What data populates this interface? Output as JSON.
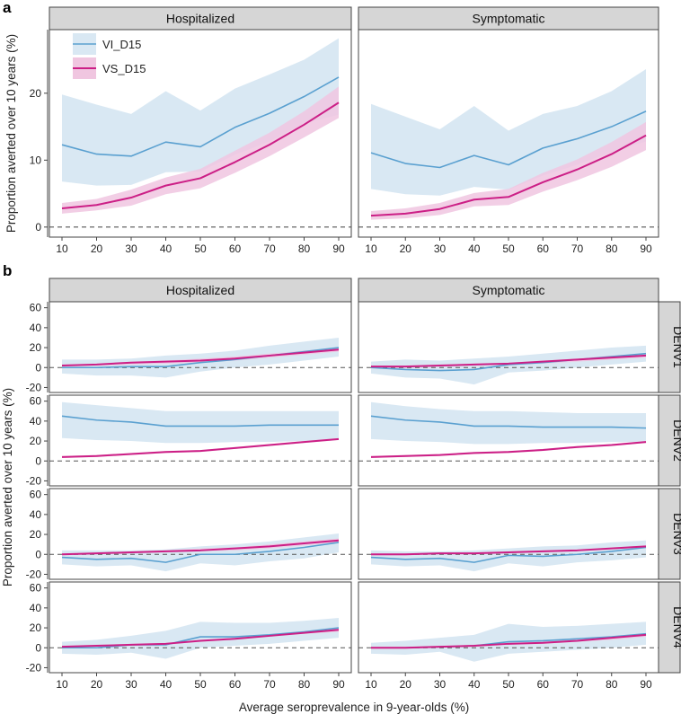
{
  "colors": {
    "vi_line": "#5aa0d0",
    "vi_band": "#d9e8f3",
    "vs_line": "#cc1f86",
    "vs_band": "#f0c6e0",
    "strip_bg": "#d6d6d6",
    "zero_line": "#555555"
  },
  "chart_data": [
    {
      "panel": "a",
      "type": "line",
      "facets": [
        "Hospitalized",
        "Symptomatic"
      ],
      "x": [
        10,
        20,
        30,
        40,
        50,
        60,
        70,
        80,
        90
      ],
      "xlabel": "",
      "ylabel": "Proportion averted over 10 years (%)",
      "ylim": [
        -1.5,
        29.5
      ],
      "yticks": [
        0,
        10,
        20
      ],
      "legend": {
        "placement": "top-left",
        "entries": [
          "VI_D15",
          "VS_D15"
        ]
      },
      "series": {
        "Hospitalized": [
          {
            "name": "VI_D15",
            "values": [
              12.3,
              10.9,
              10.6,
              12.7,
              12.0,
              14.9,
              17.0,
              19.5,
              22.4
            ],
            "lower": [
              6.8,
              6.2,
              6.3,
              8.2,
              8.3,
              10.8,
              12.8,
              15.5,
              16.8
            ],
            "upper": [
              19.8,
              18.3,
              16.9,
              20.3,
              17.4,
              20.7,
              22.8,
              25.0,
              28.2
            ]
          },
          {
            "name": "VS_D15",
            "values": [
              2.8,
              3.3,
              4.4,
              6.2,
              7.3,
              9.7,
              12.3,
              15.3,
              18.6
            ],
            "lower": [
              2.0,
              2.5,
              3.2,
              4.9,
              5.8,
              8.1,
              10.6,
              13.4,
              16.3
            ],
            "upper": [
              3.6,
              4.2,
              5.6,
              7.4,
              8.7,
              11.4,
              14.1,
              17.3,
              21.0
            ]
          }
        ],
        "Symptomatic": [
          {
            "name": "VI_D15",
            "values": [
              11.1,
              9.5,
              8.9,
              10.7,
              9.3,
              11.8,
              13.2,
              15.0,
              17.3
            ],
            "lower": [
              5.7,
              4.9,
              4.7,
              6.0,
              5.6,
              7.7,
              9.3,
              11.2,
              12.8
            ],
            "upper": [
              18.4,
              16.5,
              14.6,
              18.1,
              14.4,
              16.9,
              18.1,
              20.3,
              23.6
            ]
          },
          {
            "name": "VS_D15",
            "values": [
              1.7,
              2.0,
              2.7,
              4.1,
              4.5,
              6.7,
              8.6,
              10.9,
              13.7
            ],
            "lower": [
              1.1,
              1.3,
              1.8,
              3.1,
              3.3,
              5.3,
              7.0,
              9.0,
              11.5
            ],
            "upper": [
              2.4,
              2.8,
              3.6,
              5.1,
              5.7,
              8.1,
              10.1,
              12.7,
              15.7
            ]
          }
        ]
      }
    },
    {
      "panel": "b",
      "type": "line",
      "facets": [
        "Hospitalized",
        "Symptomatic"
      ],
      "rows": [
        "DENV1",
        "DENV2",
        "DENV3",
        "DENV4"
      ],
      "x": [
        10,
        20,
        30,
        40,
        50,
        60,
        70,
        80,
        90
      ],
      "xlabel": "Average seroprevalence in 9-year-olds (%)",
      "ylabel": "Proportion averted over 10 years (%)",
      "ylim": [
        -25,
        66
      ],
      "yticks": [
        -20,
        0,
        20,
        40,
        60
      ],
      "series": {
        "DENV1": {
          "Hospitalized": [
            {
              "name": "VI_D15",
              "values": [
                0,
                0,
                1,
                1,
                5,
                8,
                12,
                16,
                20
              ],
              "lower": [
                -6,
                -8,
                -8,
                -10,
                -4,
                0,
                3,
                7,
                11
              ],
              "upper": [
                8,
                8,
                9,
                12,
                14,
                17,
                22,
                26,
                30
              ]
            },
            {
              "name": "VS_D15",
              "values": [
                2,
                3,
                5,
                6,
                7,
                9,
                12,
                15,
                18
              ],
              "lower": [
                1,
                2,
                3,
                4,
                5,
                7,
                10,
                13,
                16
              ],
              "upper": [
                3,
                4,
                6,
                7,
                9,
                11,
                14,
                17,
                20
              ]
            }
          ],
          "Symptomatic": [
            {
              "name": "VI_D15",
              "values": [
                0,
                -2,
                -3,
                -2,
                3,
                5,
                8,
                11,
                14
              ],
              "lower": [
                -6,
                -10,
                -11,
                -17,
                -5,
                -3,
                0,
                3,
                6
              ],
              "upper": [
                6,
                8,
                7,
                9,
                11,
                14,
                17,
                20,
                22
              ]
            },
            {
              "name": "VS_D15",
              "values": [
                1,
                1,
                2,
                3,
                4,
                6,
                8,
                10,
                12
              ],
              "lower": [
                0,
                0,
                1,
                2,
                3,
                4,
                6,
                8,
                10
              ],
              "upper": [
                2,
                2,
                3,
                4,
                5,
                7,
                9,
                12,
                14
              ]
            }
          ]
        },
        "DENV2": {
          "Hospitalized": [
            {
              "name": "VI_D15",
              "values": [
                45,
                41,
                39,
                35,
                35,
                35,
                36,
                36,
                36
              ],
              "lower": [
                23,
                21,
                20,
                18,
                18,
                19,
                19,
                20,
                21
              ],
              "upper": [
                59,
                56,
                53,
                50,
                50,
                50,
                50,
                50,
                50
              ]
            },
            {
              "name": "VS_D15",
              "values": [
                4,
                5,
                7,
                9,
                10,
                13,
                16,
                19,
                22
              ],
              "lower": [
                3,
                4,
                6,
                8,
                9,
                12,
                15,
                18,
                21
              ],
              "upper": [
                5,
                6,
                8,
                10,
                11,
                14,
                17,
                20,
                23
              ]
            }
          ],
          "Symptomatic": [
            {
              "name": "VI_D15",
              "values": [
                45,
                41,
                39,
                35,
                35,
                34,
                34,
                34,
                33
              ],
              "lower": [
                22,
                20,
                19,
                17,
                17,
                18,
                18,
                19,
                19
              ],
              "upper": [
                59,
                55,
                52,
                50,
                50,
                49,
                48,
                48,
                48
              ]
            },
            {
              "name": "VS_D15",
              "values": [
                4,
                5,
                6,
                8,
                9,
                11,
                14,
                16,
                19
              ],
              "lower": [
                3,
                4,
                5,
                7,
                8,
                10,
                13,
                15,
                18
              ],
              "upper": [
                5,
                6,
                7,
                9,
                10,
                12,
                15,
                17,
                20
              ]
            }
          ]
        },
        "DENV3": {
          "Hospitalized": [
            {
              "name": "VI_D15",
              "values": [
                -3,
                -5,
                -4,
                -8,
                0,
                0,
                3,
                7,
                12
              ],
              "lower": [
                -10,
                -12,
                -11,
                -17,
                -9,
                -11,
                -7,
                -4,
                2
              ],
              "upper": [
                4,
                4,
                4,
                5,
                8,
                10,
                13,
                17,
                21
              ]
            },
            {
              "name": "VS_D15",
              "values": [
                0,
                1,
                2,
                3,
                4,
                6,
                8,
                11,
                14
              ],
              "lower": [
                -1,
                0,
                1,
                2,
                3,
                4,
                6,
                9,
                12
              ],
              "upper": [
                1,
                2,
                3,
                4,
                6,
                7,
                10,
                13,
                16
              ]
            }
          ],
          "Symptomatic": [
            {
              "name": "VI_D15",
              "values": [
                -3,
                -5,
                -4,
                -8,
                -1,
                -2,
                0,
                3,
                7
              ],
              "lower": [
                -10,
                -12,
                -11,
                -17,
                -9,
                -12,
                -8,
                -6,
                -3
              ],
              "upper": [
                4,
                3,
                3,
                4,
                6,
                8,
                9,
                12,
                14
              ]
            },
            {
              "name": "VS_D15",
              "values": [
                0,
                0,
                1,
                1,
                2,
                3,
                4,
                6,
                8
              ],
              "lower": [
                -1,
                -1,
                0,
                0,
                1,
                2,
                3,
                5,
                7
              ],
              "upper": [
                1,
                1,
                2,
                2,
                3,
                4,
                5,
                7,
                9
              ]
            }
          ]
        },
        "DENV4": {
          "Hospitalized": [
            {
              "name": "VI_D15",
              "values": [
                0,
                0,
                3,
                3,
                11,
                11,
                13,
                16,
                20
              ],
              "lower": [
                -6,
                -7,
                -5,
                -11,
                0,
                2,
                4,
                7,
                10
              ],
              "upper": [
                6,
                8,
                12,
                17,
                26,
                25,
                25,
                27,
                30
              ]
            },
            {
              "name": "VS_D15",
              "values": [
                1,
                2,
                3,
                4,
                7,
                9,
                12,
                15,
                18
              ],
              "lower": [
                0,
                1,
                2,
                3,
                6,
                8,
                11,
                14,
                16
              ],
              "upper": [
                2,
                3,
                4,
                5,
                8,
                10,
                13,
                16,
                20
              ]
            }
          ],
          "Symptomatic": [
            {
              "name": "VI_D15",
              "values": [
                0,
                0,
                1,
                2,
                6,
                7,
                9,
                11,
                14
              ],
              "lower": [
                -6,
                -7,
                -4,
                -14,
                -6,
                -4,
                -2,
                0,
                3
              ],
              "upper": [
                5,
                7,
                10,
                13,
                24,
                21,
                22,
                24,
                26
              ]
            },
            {
              "name": "VS_D15",
              "values": [
                0,
                0,
                1,
                2,
                4,
                5,
                7,
                10,
                13
              ],
              "lower": [
                -1,
                -1,
                0,
                1,
                3,
                4,
                6,
                8,
                11
              ],
              "upper": [
                1,
                1,
                2,
                3,
                5,
                6,
                8,
                11,
                14
              ]
            }
          ]
        }
      }
    }
  ]
}
